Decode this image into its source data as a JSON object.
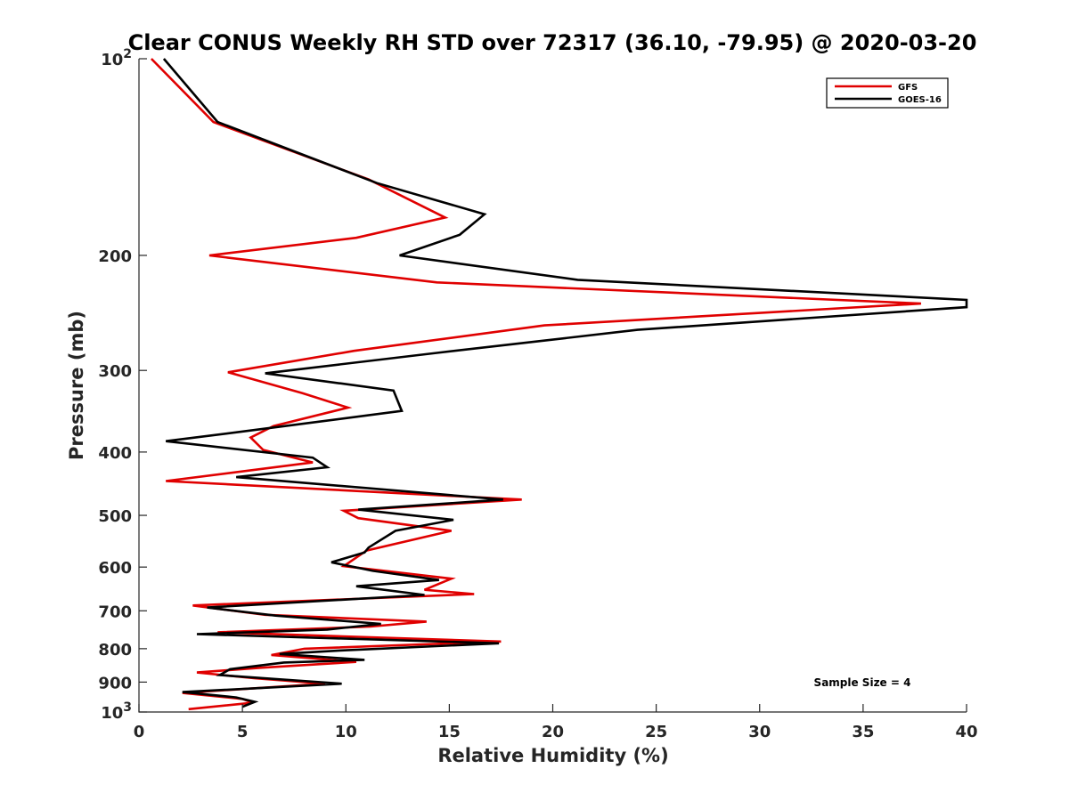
{
  "chart_data": {
    "type": "line",
    "title": "Clear CONUS Weekly RH STD over 72317 (36.10, -79.95) @ 2020-03-20",
    "xlabel": "Relative Humidity (%)",
    "ylabel": "Pressure (mb)",
    "xlim": [
      0,
      40
    ],
    "ylim": [
      100,
      1000
    ],
    "y_scale": "log",
    "y_reversed": true,
    "grid": false,
    "legend_position": "top-right",
    "x_ticks": [
      0,
      5,
      10,
      15,
      20,
      25,
      30,
      35,
      40
    ],
    "x_tick_labels": [
      "0",
      "5",
      "10",
      "15",
      "20",
      "25",
      "30",
      "35",
      "40"
    ],
    "y_ticks": [
      100,
      200,
      300,
      400,
      500,
      600,
      700,
      800,
      900,
      1000
    ],
    "y_tick_labels": [
      "10^2",
      "200",
      "300",
      "400",
      "500",
      "600",
      "700",
      "800",
      "900",
      "10^3"
    ],
    "annotation": "Sample Size = 4",
    "series": [
      {
        "name": "GFS",
        "color": "#e00000",
        "points": [
          [
            0.6,
            100
          ],
          [
            3.6,
            125
          ],
          [
            11.1,
            153
          ],
          [
            14.8,
            175
          ],
          [
            10.5,
            188
          ],
          [
            3.4,
            200
          ],
          [
            14.4,
            220
          ],
          [
            37.8,
            237
          ],
          [
            19.6,
            256
          ],
          [
            10.4,
            280
          ],
          [
            4.3,
            302
          ],
          [
            7.9,
            325
          ],
          [
            10.1,
            342
          ],
          [
            6.5,
            365
          ],
          [
            5.4,
            380
          ],
          [
            6.0,
            397
          ],
          [
            8.4,
            415
          ],
          [
            1.3,
            443
          ],
          [
            18.5,
            473
          ],
          [
            9.9,
            492
          ],
          [
            10.6,
            505
          ],
          [
            15.1,
            528
          ],
          [
            11.0,
            566
          ],
          [
            9.9,
            598
          ],
          [
            15.1,
            625
          ],
          [
            13.8,
            650
          ],
          [
            16.2,
            660
          ],
          [
            2.6,
            687
          ],
          [
            6.1,
            710
          ],
          [
            13.9,
            727
          ],
          [
            11.2,
            740
          ],
          [
            3.8,
            755
          ],
          [
            17.5,
            780
          ],
          [
            8.0,
            800
          ],
          [
            6.4,
            818
          ],
          [
            10.5,
            838
          ],
          [
            5.8,
            856
          ],
          [
            2.8,
            870
          ],
          [
            5.6,
            888
          ],
          [
            9.0,
            905
          ],
          [
            2.1,
            935
          ],
          [
            5.0,
            955
          ],
          [
            5.5,
            968
          ],
          [
            2.4,
            990
          ]
        ]
      },
      {
        "name": "GOES-16",
        "color": "#000000",
        "points": [
          [
            1.2,
            100
          ],
          [
            3.8,
            125
          ],
          [
            11.5,
            155
          ],
          [
            16.7,
            173
          ],
          [
            15.5,
            186
          ],
          [
            12.6,
            200
          ],
          [
            21.2,
            218
          ],
          [
            40.0,
            234
          ],
          [
            40.0,
            240
          ],
          [
            24.1,
            260
          ],
          [
            14.4,
            282
          ],
          [
            6.1,
            303
          ],
          [
            12.3,
            322
          ],
          [
            12.7,
            346
          ],
          [
            5.6,
            370
          ],
          [
            1.3,
            385
          ],
          [
            8.4,
            408
          ],
          [
            9.1,
            422
          ],
          [
            4.7,
            437
          ],
          [
            17.6,
            473
          ],
          [
            10.6,
            490
          ],
          [
            15.2,
            508
          ],
          [
            12.4,
            528
          ],
          [
            11.1,
            560
          ],
          [
            10.9,
            570
          ],
          [
            9.3,
            590
          ],
          [
            11.3,
            608
          ],
          [
            14.5,
            628
          ],
          [
            10.5,
            642
          ],
          [
            13.8,
            662
          ],
          [
            3.3,
            692
          ],
          [
            6.6,
            712
          ],
          [
            11.7,
            733
          ],
          [
            9.1,
            748
          ],
          [
            2.8,
            760
          ],
          [
            17.4,
            785
          ],
          [
            9.7,
            805
          ],
          [
            6.8,
            815
          ],
          [
            10.9,
            832
          ],
          [
            7.0,
            840
          ],
          [
            4.4,
            860
          ],
          [
            3.9,
            878
          ],
          [
            9.8,
            905
          ],
          [
            2.1,
            932
          ],
          [
            4.7,
            950
          ],
          [
            5.6,
            965
          ],
          [
            5.0,
            982
          ]
        ]
      }
    ]
  }
}
